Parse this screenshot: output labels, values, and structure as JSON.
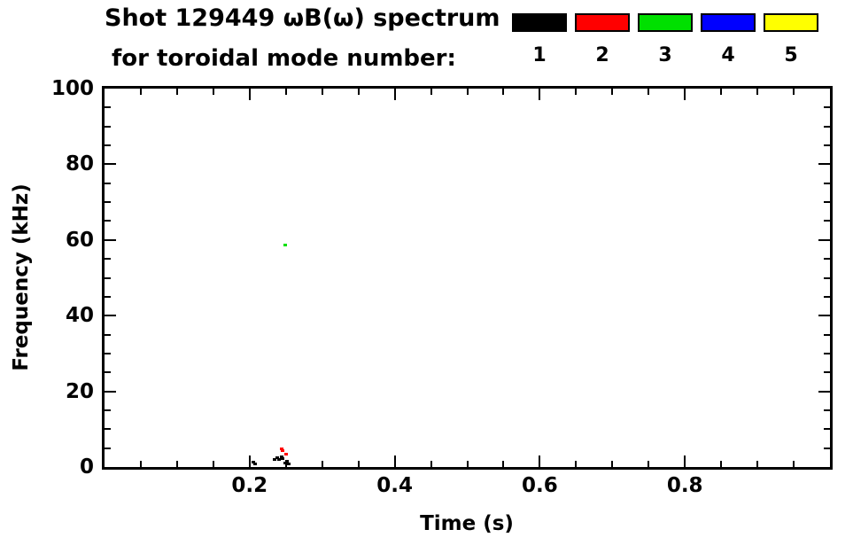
{
  "header": {
    "title_line1": "Shot 129449 ωB(ω) spectrum",
    "title_line2": "for toroidal mode number:"
  },
  "legend": {
    "items": [
      {
        "label": "1",
        "color": "#000000"
      },
      {
        "label": "2",
        "color": "#ff0000"
      },
      {
        "label": "3",
        "color": "#00e000"
      },
      {
        "label": "4",
        "color": "#0000ff"
      },
      {
        "label": "5",
        "color": "#ffff00"
      }
    ]
  },
  "chart_data": {
    "type": "scatter",
    "title": "Shot 129449 ωB(ω) spectrum for toroidal mode number:",
    "xlabel": "Time (s)",
    "ylabel": "Frequency (kHz)",
    "xlim": [
      0.0,
      1.0
    ],
    "ylim": [
      0,
      100
    ],
    "x_major_ticks": [
      0.2,
      0.4,
      0.6,
      0.8
    ],
    "x_tick_labels": [
      "0.2",
      "0.4",
      "0.6",
      "0.8"
    ],
    "x_minor_tick_step": 0.05,
    "y_major_ticks": [
      0,
      20,
      40,
      60,
      80,
      100
    ],
    "y_tick_labels": [
      "0",
      "20",
      "40",
      "60",
      "80",
      "100"
    ],
    "y_minor_tick_step": 5,
    "grid": false,
    "legend_position": "top-right",
    "series": [
      {
        "name": "1",
        "color": "#000000",
        "points": [
          [
            0.205,
            1.4
          ],
          [
            0.208,
            0.9
          ],
          [
            0.235,
            2.1
          ],
          [
            0.238,
            2.5
          ],
          [
            0.241,
            2.1
          ],
          [
            0.244,
            2.6
          ],
          [
            0.246,
            2.2
          ],
          [
            0.249,
            1.1
          ],
          [
            0.252,
            1.6
          ],
          [
            0.254,
            0.9
          ]
        ]
      },
      {
        "name": "2",
        "color": "#ff0000",
        "points": [
          [
            0.244,
            4.9
          ],
          [
            0.246,
            4.3
          ],
          [
            0.25,
            3.3
          ]
        ]
      },
      {
        "name": "3",
        "color": "#00e000",
        "points": [
          [
            0.249,
            58.6
          ]
        ]
      },
      {
        "name": "4",
        "color": "#0000ff",
        "points": []
      },
      {
        "name": "5",
        "color": "#ffff00",
        "points": []
      }
    ]
  }
}
